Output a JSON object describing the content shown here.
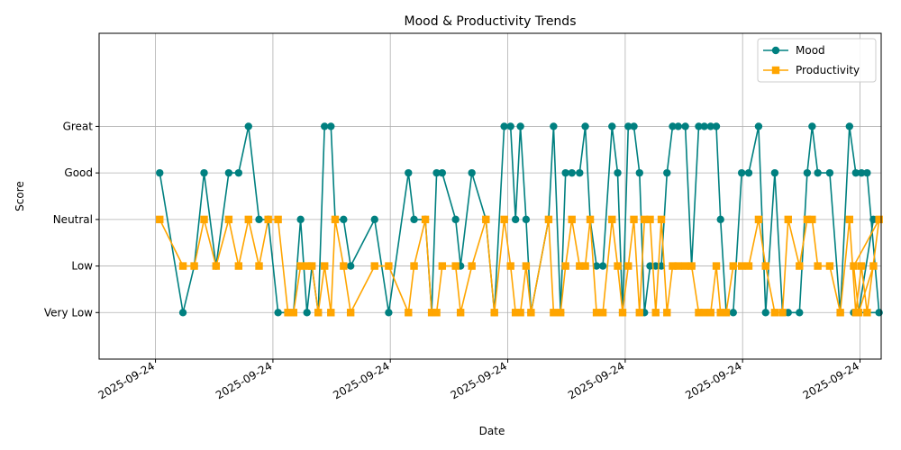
{
  "chart_data": {
    "type": "line",
    "title": "Mood & Productivity Trends",
    "xlabel": "Date",
    "ylabel": "Score",
    "ylim": [
      0,
      7
    ],
    "xlim": [
      -0.08,
      1.03
    ],
    "y_ticks": [
      {
        "value": 1,
        "label": "Very Low"
      },
      {
        "value": 2,
        "label": "Low"
      },
      {
        "value": 3,
        "label": "Neutral"
      },
      {
        "value": 4,
        "label": "Good"
      },
      {
        "value": 5,
        "label": "Great"
      }
    ],
    "x_ticks": [
      {
        "value": 0.0,
        "label": "2025-09-24"
      },
      {
        "value": 0.1667,
        "label": "2025-09-24"
      },
      {
        "value": 0.3333,
        "label": "2025-09-24"
      },
      {
        "value": 0.5,
        "label": "2025-09-24"
      },
      {
        "value": 0.6667,
        "label": "2025-09-24"
      },
      {
        "value": 0.8333,
        "label": "2025-09-24"
      },
      {
        "value": 1.0,
        "label": "2025-09-24"
      }
    ],
    "grid": true,
    "legend_position": "top-right",
    "series": [
      {
        "name": "Mood",
        "color": "#008080",
        "marker": "circle",
        "points": [
          [
            0.006,
            4
          ],
          [
            0.039,
            1
          ],
          [
            0.055,
            2
          ],
          [
            0.069,
            4
          ],
          [
            0.086,
            2
          ],
          [
            0.104,
            4
          ],
          [
            0.118,
            4
          ],
          [
            0.132,
            5
          ],
          [
            0.147,
            3
          ],
          [
            0.16,
            3
          ],
          [
            0.174,
            1
          ],
          [
            0.188,
            1
          ],
          [
            0.196,
            1
          ],
          [
            0.206,
            3
          ],
          [
            0.215,
            1
          ],
          [
            0.222,
            2
          ],
          [
            0.231,
            1
          ],
          [
            0.24,
            5
          ],
          [
            0.249,
            5
          ],
          [
            0.255,
            3
          ],
          [
            0.267,
            3
          ],
          [
            0.277,
            2
          ],
          [
            0.311,
            3
          ],
          [
            0.331,
            1
          ],
          [
            0.359,
            4
          ],
          [
            0.367,
            3
          ],
          [
            0.383,
            3
          ],
          [
            0.392,
            1
          ],
          [
            0.399,
            4
          ],
          [
            0.407,
            4
          ],
          [
            0.426,
            3
          ],
          [
            0.433,
            2
          ],
          [
            0.449,
            4
          ],
          [
            0.469,
            3
          ],
          [
            0.481,
            1
          ],
          [
            0.495,
            5
          ],
          [
            0.504,
            5
          ],
          [
            0.511,
            3
          ],
          [
            0.518,
            5
          ],
          [
            0.526,
            3
          ],
          [
            0.533,
            1
          ],
          [
            0.558,
            3
          ],
          [
            0.565,
            5
          ],
          [
            0.575,
            1
          ],
          [
            0.582,
            4
          ],
          [
            0.591,
            4
          ],
          [
            0.602,
            4
          ],
          [
            0.61,
            5
          ],
          [
            0.617,
            3
          ],
          [
            0.626,
            2
          ],
          [
            0.635,
            2
          ],
          [
            0.648,
            5
          ],
          [
            0.656,
            4
          ],
          [
            0.663,
            1
          ],
          [
            0.671,
            5
          ],
          [
            0.679,
            5
          ],
          [
            0.687,
            4
          ],
          [
            0.694,
            1
          ],
          [
            0.702,
            2
          ],
          [
            0.71,
            2
          ],
          [
            0.718,
            2
          ],
          [
            0.726,
            4
          ],
          [
            0.734,
            5
          ],
          [
            0.742,
            5
          ],
          [
            0.752,
            5
          ],
          [
            0.761,
            2
          ],
          [
            0.771,
            5
          ],
          [
            0.779,
            5
          ],
          [
            0.788,
            5
          ],
          [
            0.796,
            5
          ],
          [
            0.802,
            3
          ],
          [
            0.81,
            1
          ],
          [
            0.82,
            1
          ],
          [
            0.832,
            4
          ],
          [
            0.842,
            4
          ],
          [
            0.856,
            5
          ],
          [
            0.866,
            1
          ],
          [
            0.879,
            4
          ],
          [
            0.89,
            1
          ],
          [
            0.898,
            1
          ],
          [
            0.914,
            1
          ],
          [
            0.925,
            4
          ],
          [
            0.932,
            5
          ],
          [
            0.94,
            4
          ],
          [
            0.957,
            4
          ],
          [
            0.972,
            1
          ],
          [
            0.985,
            5
          ],
          [
            0.994,
            4
          ],
          [
            1.002,
            4
          ],
          [
            1.01,
            4
          ],
          [
            1.027,
            1
          ],
          [
            0.991,
            1
          ],
          [
            0.998,
            1
          ],
          [
            1.019,
            3
          ]
        ]
      },
      {
        "name": "Productivity",
        "color": "#ffa500",
        "marker": "square",
        "points": [
          [
            0.006,
            3
          ],
          [
            0.039,
            2
          ],
          [
            0.055,
            2
          ],
          [
            0.069,
            3
          ],
          [
            0.086,
            2
          ],
          [
            0.104,
            3
          ],
          [
            0.118,
            2
          ],
          [
            0.132,
            3
          ],
          [
            0.147,
            2
          ],
          [
            0.16,
            3
          ],
          [
            0.174,
            3
          ],
          [
            0.188,
            1
          ],
          [
            0.196,
            1
          ],
          [
            0.206,
            2
          ],
          [
            0.215,
            2
          ],
          [
            0.222,
            2
          ],
          [
            0.231,
            1
          ],
          [
            0.24,
            2
          ],
          [
            0.249,
            1
          ],
          [
            0.255,
            3
          ],
          [
            0.267,
            2
          ],
          [
            0.277,
            1
          ],
          [
            0.311,
            2
          ],
          [
            0.331,
            2
          ],
          [
            0.359,
            1
          ],
          [
            0.367,
            2
          ],
          [
            0.383,
            3
          ],
          [
            0.392,
            1
          ],
          [
            0.399,
            1
          ],
          [
            0.407,
            2
          ],
          [
            0.426,
            2
          ],
          [
            0.433,
            1
          ],
          [
            0.449,
            2
          ],
          [
            0.469,
            3
          ],
          [
            0.481,
            1
          ],
          [
            0.495,
            3
          ],
          [
            0.504,
            2
          ],
          [
            0.511,
            1
          ],
          [
            0.518,
            1
          ],
          [
            0.526,
            2
          ],
          [
            0.533,
            1
          ],
          [
            0.558,
            3
          ],
          [
            0.565,
            1
          ],
          [
            0.575,
            1
          ],
          [
            0.582,
            2
          ],
          [
            0.591,
            3
          ],
          [
            0.602,
            2
          ],
          [
            0.61,
            2
          ],
          [
            0.617,
            3
          ],
          [
            0.626,
            1
          ],
          [
            0.635,
            1
          ],
          [
            0.648,
            3
          ],
          [
            0.656,
            2
          ],
          [
            0.663,
            1
          ],
          [
            0.671,
            2
          ],
          [
            0.679,
            3
          ],
          [
            0.687,
            1
          ],
          [
            0.694,
            3
          ],
          [
            0.702,
            3
          ],
          [
            0.71,
            1
          ],
          [
            0.718,
            3
          ],
          [
            0.726,
            1
          ],
          [
            0.734,
            2
          ],
          [
            0.742,
            2
          ],
          [
            0.752,
            2
          ],
          [
            0.761,
            2
          ],
          [
            0.771,
            1
          ],
          [
            0.779,
            1
          ],
          [
            0.788,
            1
          ],
          [
            0.796,
            2
          ],
          [
            0.802,
            1
          ],
          [
            0.81,
            1
          ],
          [
            0.82,
            2
          ],
          [
            0.832,
            2
          ],
          [
            0.842,
            2
          ],
          [
            0.856,
            3
          ],
          [
            0.866,
            2
          ],
          [
            0.879,
            1
          ],
          [
            0.89,
            1
          ],
          [
            0.898,
            3
          ],
          [
            0.914,
            2
          ],
          [
            0.925,
            3
          ],
          [
            0.932,
            3
          ],
          [
            0.94,
            2
          ],
          [
            0.957,
            2
          ],
          [
            0.972,
            1
          ],
          [
            0.985,
            3
          ],
          [
            0.994,
            1
          ],
          [
            1.002,
            2
          ],
          [
            1.01,
            1
          ],
          [
            1.027,
            3
          ],
          [
            0.991,
            2
          ],
          [
            0.998,
            1
          ],
          [
            1.019,
            2
          ]
        ]
      }
    ]
  }
}
